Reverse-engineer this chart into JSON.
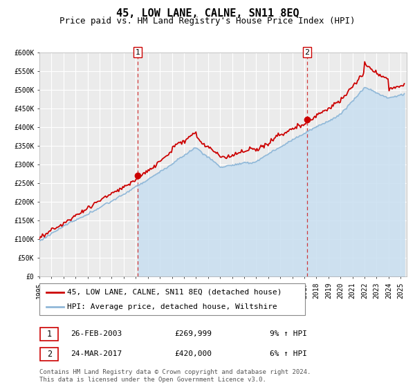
{
  "title": "45, LOW LANE, CALNE, SN11 8EQ",
  "subtitle": "Price paid vs. HM Land Registry's House Price Index (HPI)",
  "ylim": [
    0,
    600000
  ],
  "xlim_start": 1995.0,
  "xlim_end": 2025.5,
  "yticks": [
    0,
    50000,
    100000,
    150000,
    200000,
    250000,
    300000,
    350000,
    400000,
    450000,
    500000,
    550000,
    600000
  ],
  "ytick_labels": [
    "£0",
    "£50K",
    "£100K",
    "£150K",
    "£200K",
    "£250K",
    "£300K",
    "£350K",
    "£400K",
    "£450K",
    "£500K",
    "£550K",
    "£600K"
  ],
  "xticks": [
    1995,
    1996,
    1997,
    1998,
    1999,
    2000,
    2001,
    2002,
    2003,
    2004,
    2005,
    2006,
    2007,
    2008,
    2009,
    2010,
    2011,
    2012,
    2013,
    2014,
    2015,
    2016,
    2017,
    2018,
    2019,
    2020,
    2021,
    2022,
    2023,
    2024,
    2025
  ],
  "background_color": "#ffffff",
  "plot_bg_color": "#ebebeb",
  "grid_color": "#ffffff",
  "hpi_line_color": "#90b8d8",
  "hpi_fill_color": "#c8dff0",
  "price_line_color": "#cc0000",
  "sale1_x": 2003.15,
  "sale1_y": 269999,
  "sale2_x": 2017.23,
  "sale2_y": 420000,
  "sale1_label": "1",
  "sale2_label": "2",
  "sale1_date": "26-FEB-2003",
  "sale1_price": "£269,999",
  "sale1_hpi": "9% ↑ HPI",
  "sale2_date": "24-MAR-2017",
  "sale2_price": "£420,000",
  "sale2_hpi": "6% ↑ HPI",
  "legend_line1": "45, LOW LANE, CALNE, SN11 8EQ (detached house)",
  "legend_line2": "HPI: Average price, detached house, Wiltshire",
  "footer_line1": "Contains HM Land Registry data © Crown copyright and database right 2024.",
  "footer_line2": "This data is licensed under the Open Government Licence v3.0.",
  "title_fontsize": 11,
  "subtitle_fontsize": 9,
  "tick_fontsize": 7,
  "legend_fontsize": 8,
  "footer_fontsize": 6.5
}
